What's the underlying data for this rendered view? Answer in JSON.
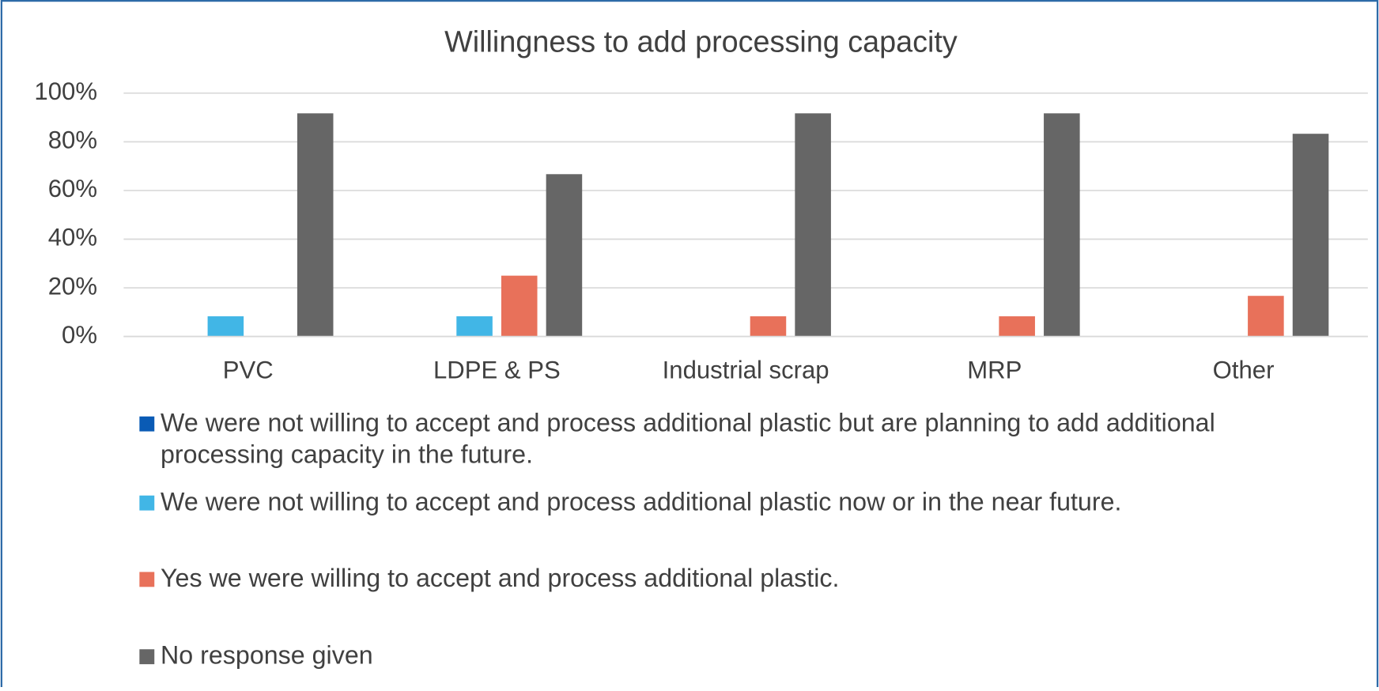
{
  "chart_data": {
    "type": "bar",
    "title": "Willingness to add processing capacity",
    "categories": [
      "PVC",
      "LDPE & PS",
      "Industrial scrap",
      "MRP",
      "Other"
    ],
    "series": [
      {
        "name": "We were not willing to accept and process additional plastic but are planning to add additional processing capacity in the future.",
        "color": "#0a5bb5",
        "values": [
          0,
          0,
          0,
          0,
          0
        ]
      },
      {
        "name": "We were not willing to accept and process additional plastic now or in the near future.",
        "color": "#41b6e6",
        "values": [
          8.3,
          8.3,
          0,
          0,
          0
        ]
      },
      {
        "name": "Yes we were willing to accept and process additional plastic.",
        "color": "#e8715a",
        "values": [
          0,
          25,
          8.3,
          8.3,
          16.7
        ]
      },
      {
        "name": "No response given",
        "color": "#666666",
        "values": [
          91.7,
          66.7,
          91.7,
          91.7,
          83.3
        ]
      }
    ],
    "ylim": [
      0,
      100
    ],
    "yticks": [
      {
        "value": 0,
        "label": "0%"
      },
      {
        "value": 20,
        "label": "20%"
      },
      {
        "value": 40,
        "label": "40%"
      },
      {
        "value": 60,
        "label": "60%"
      },
      {
        "value": 80,
        "label": "80%"
      },
      {
        "value": 100,
        "label": "100%"
      }
    ],
    "grid": true,
    "legend": "bottom"
  }
}
